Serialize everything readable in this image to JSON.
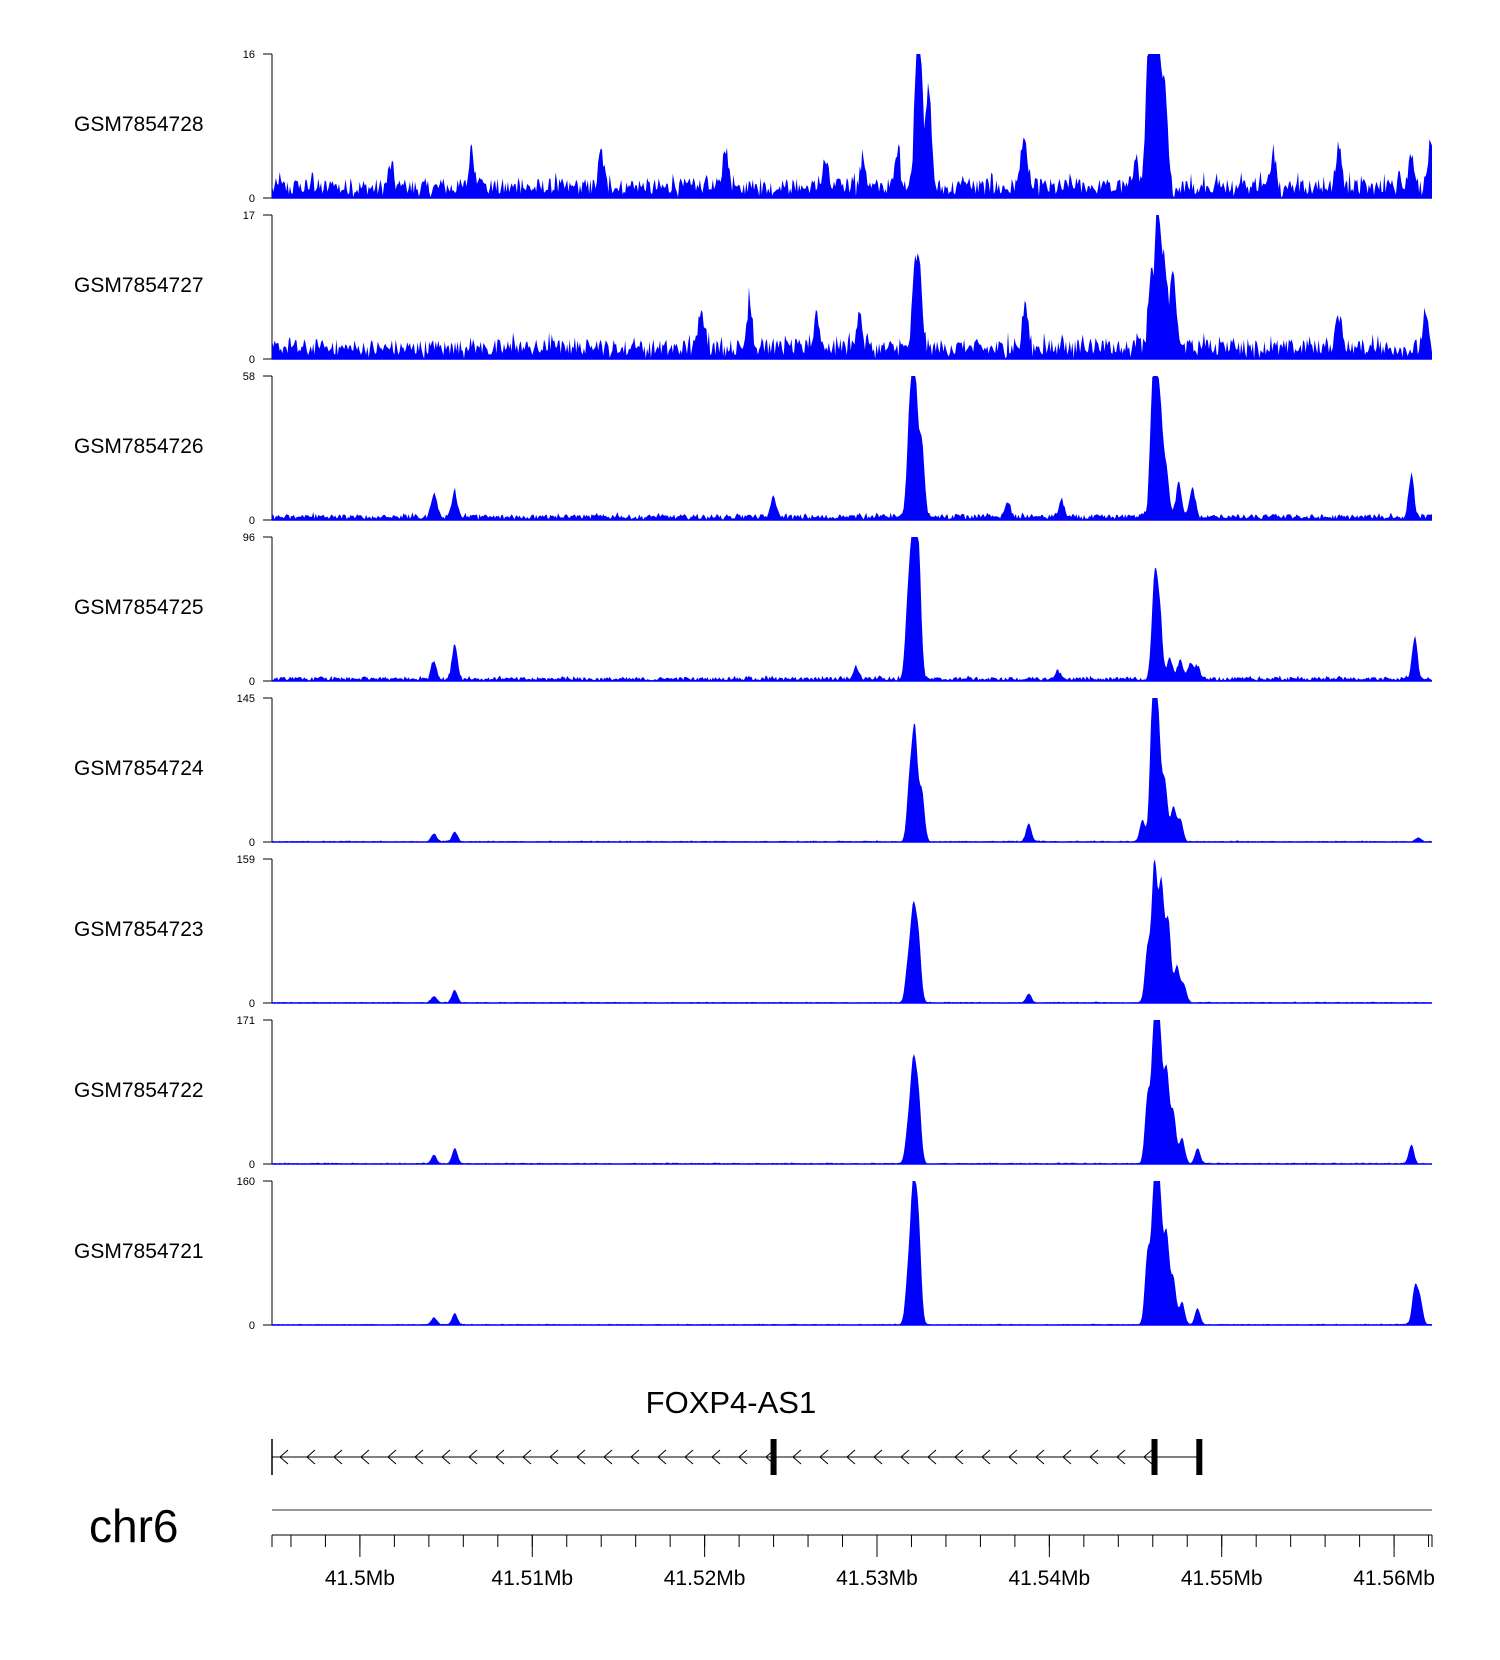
{
  "chart_data": {
    "type": "area",
    "chromosome": "chr6",
    "x_range_mb": [
      41.4949,
      41.5622
    ],
    "x_ticks_mb": [
      41.5,
      41.51,
      41.52,
      41.53,
      41.54,
      41.55,
      41.56
    ],
    "x_tick_labels": [
      "41.5Mb",
      "41.51Mb",
      "41.52Mb",
      "41.53Mb",
      "41.54Mb",
      "41.55Mb",
      "41.56Mb"
    ],
    "color": "#0000ff",
    "tracks": [
      {
        "name": "GSM7854728",
        "ymin": 0,
        "ymax": 16,
        "peaks": [
          [
            41.5323,
            12
          ],
          [
            41.5325,
            13
          ],
          [
            41.533,
            11
          ],
          [
            41.5461,
            14
          ],
          [
            41.5463,
            16
          ],
          [
            41.5459,
            12
          ],
          [
            41.5467,
            11
          ],
          [
            41.5457,
            10
          ],
          [
            41.5018,
            2.5
          ],
          [
            41.5065,
            4
          ],
          [
            41.514,
            4
          ],
          [
            41.5212,
            4.5
          ],
          [
            41.527,
            3
          ],
          [
            41.5292,
            3.5
          ],
          [
            41.5385,
            6
          ],
          [
            41.5312,
            4
          ],
          [
            41.5568,
            5
          ],
          [
            41.561,
            4
          ],
          [
            41.5621,
            4.5
          ],
          [
            41.553,
            4
          ],
          [
            41.545,
            3
          ]
        ],
        "noise": 2.8
      },
      {
        "name": "GSM7854727",
        "ymin": 0,
        "ymax": 17,
        "peaks": [
          [
            41.5322,
            9
          ],
          [
            41.5325,
            8
          ],
          [
            41.5463,
            16.5
          ],
          [
            41.5467,
            10
          ],
          [
            41.5472,
            9
          ],
          [
            41.5459,
            8
          ],
          [
            41.5198,
            5
          ],
          [
            41.5226,
            5.5
          ],
          [
            41.5265,
            4
          ],
          [
            41.5386,
            5.5
          ],
          [
            41.529,
            4
          ],
          [
            41.5568,
            4
          ],
          [
            41.5618,
            4
          ]
        ],
        "noise": 3.0
      },
      {
        "name": "GSM7854726",
        "ymin": 0,
        "ymax": 58,
        "peaks": [
          [
            41.5322,
            57
          ],
          [
            41.5319,
            40
          ],
          [
            41.5326,
            30
          ],
          [
            41.546,
            52
          ],
          [
            41.5463,
            40
          ],
          [
            41.5468,
            18
          ],
          [
            41.5475,
            14
          ],
          [
            41.5483,
            12
          ],
          [
            41.5043,
            10
          ],
          [
            41.5055,
            10
          ],
          [
            41.561,
            17
          ],
          [
            41.524,
            8
          ],
          [
            41.5465,
            22
          ],
          [
            41.5376,
            6
          ],
          [
            41.5407,
            7
          ]
        ],
        "noise": 3.0
      },
      {
        "name": "GSM7854725",
        "ymin": 0,
        "ymax": 96,
        "peaks": [
          [
            41.5321,
            95
          ],
          [
            41.5324,
            85
          ],
          [
            41.5318,
            50
          ],
          [
            41.5461,
            65
          ],
          [
            41.5464,
            45
          ],
          [
            41.547,
            14
          ],
          [
            41.5476,
            12
          ],
          [
            41.5482,
            10
          ],
          [
            41.5486,
            8
          ],
          [
            41.5043,
            12
          ],
          [
            41.5055,
            24
          ],
          [
            41.5612,
            28
          ],
          [
            41.5288,
            8
          ],
          [
            41.5405,
            5
          ]
        ],
        "noise": 3.5
      },
      {
        "name": "GSM7854724",
        "ymin": 0,
        "ymax": 145,
        "peaks": [
          [
            41.5322,
            108
          ],
          [
            41.5319,
            60
          ],
          [
            41.5326,
            50
          ],
          [
            41.546,
            143
          ],
          [
            41.5463,
            120
          ],
          [
            41.5467,
            60
          ],
          [
            41.5472,
            35
          ],
          [
            41.5476,
            22
          ],
          [
            41.5454,
            22
          ],
          [
            41.5388,
            18
          ],
          [
            41.5043,
            8
          ],
          [
            41.5055,
            10
          ],
          [
            41.5614,
            4
          ]
        ],
        "noise": 1.5
      },
      {
        "name": "GSM7854723",
        "ymin": 0,
        "ymax": 159,
        "peaks": [
          [
            41.5321,
            94
          ],
          [
            41.5324,
            70
          ],
          [
            41.5318,
            40
          ],
          [
            41.5461,
            155
          ],
          [
            41.5465,
            130
          ],
          [
            41.5469,
            90
          ],
          [
            41.5474,
            40
          ],
          [
            41.5478,
            20
          ],
          [
            41.5457,
            60
          ],
          [
            41.5388,
            10
          ],
          [
            41.5055,
            14
          ],
          [
            41.5043,
            7
          ]
        ],
        "noise": 1.5
      },
      {
        "name": "GSM7854722",
        "ymin": 0,
        "ymax": 171,
        "peaks": [
          [
            41.5321,
            110
          ],
          [
            41.5324,
            80
          ],
          [
            41.5318,
            40
          ],
          [
            41.5461,
            168
          ],
          [
            41.5464,
            150
          ],
          [
            41.5468,
            110
          ],
          [
            41.5472,
            60
          ],
          [
            41.5477,
            30
          ],
          [
            41.5486,
            18
          ],
          [
            41.5457,
            80
          ],
          [
            41.561,
            22
          ],
          [
            41.5043,
            10
          ],
          [
            41.5055,
            18
          ]
        ],
        "noise": 1.8
      },
      {
        "name": "GSM7854721",
        "ymin": 0,
        "ymax": 160,
        "peaks": [
          [
            41.5321,
            145
          ],
          [
            41.5324,
            110
          ],
          [
            41.5318,
            50
          ],
          [
            41.5461,
            158
          ],
          [
            41.5464,
            140
          ],
          [
            41.5468,
            100
          ],
          [
            41.5472,
            50
          ],
          [
            41.5477,
            25
          ],
          [
            41.5486,
            18
          ],
          [
            41.5457,
            80
          ],
          [
            41.5612,
            40
          ],
          [
            41.5615,
            28
          ],
          [
            41.5043,
            8
          ],
          [
            41.5055,
            12
          ]
        ],
        "noise": 1.5
      }
    ],
    "gene": {
      "name": "FOXP4-AS1",
      "strand": "-",
      "start_mb": 41.4949,
      "end_mb": 41.5487,
      "exons_mb": [
        41.524,
        41.5461,
        41.5487
      ]
    }
  }
}
